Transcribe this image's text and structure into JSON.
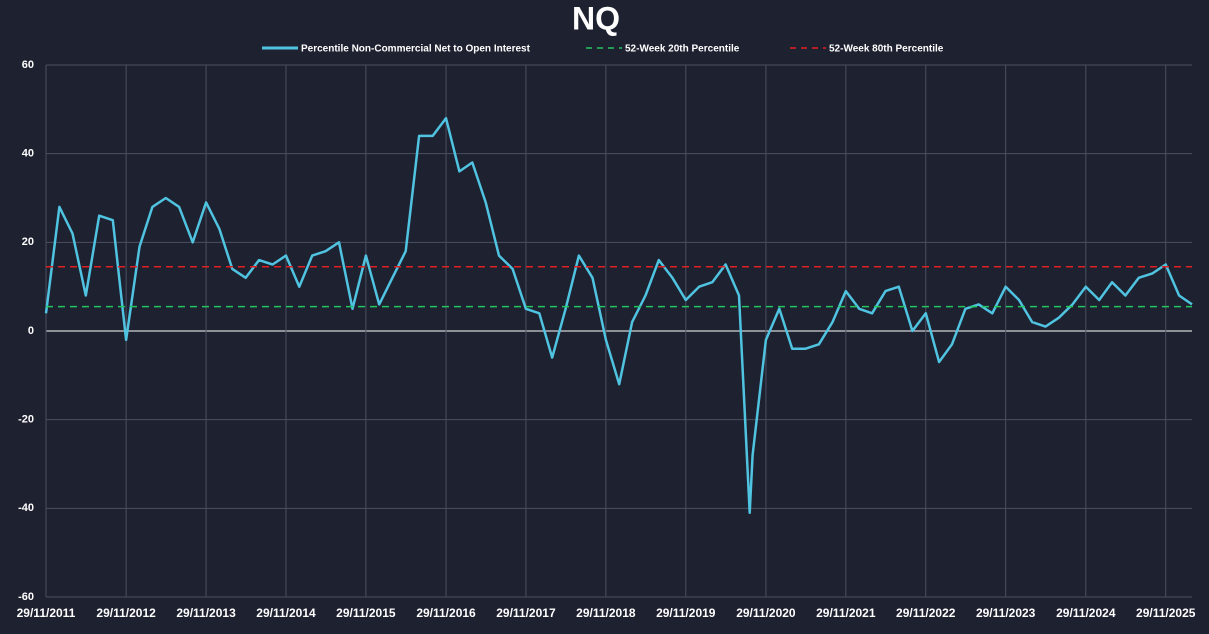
{
  "chart_data": {
    "type": "line",
    "title": "NQ",
    "x": [
      "29/11/2011",
      "29/01/2012",
      "29/03/2012",
      "29/05/2012",
      "29/07/2012",
      "29/09/2012",
      "29/11/2012",
      "29/01/2013",
      "29/03/2013",
      "29/05/2013",
      "29/07/2013",
      "29/09/2013",
      "29/11/2013",
      "29/01/2014",
      "29/03/2014",
      "29/05/2014",
      "29/07/2014",
      "29/09/2014",
      "29/11/2014",
      "29/01/2015",
      "29/03/2015",
      "29/05/2015",
      "29/07/2015",
      "29/09/2015",
      "29/11/2015",
      "29/01/2016",
      "29/03/2016",
      "29/05/2016",
      "29/07/2016",
      "29/09/2016",
      "29/11/2016",
      "29/01/2017",
      "29/03/2017",
      "29/05/2017",
      "29/07/2017",
      "29/09/2017",
      "29/11/2017",
      "29/01/2018",
      "29/03/2018",
      "29/05/2018",
      "29/07/2018",
      "29/09/2018",
      "29/11/2018",
      "29/01/2019",
      "29/03/2019",
      "29/05/2019",
      "29/07/2019",
      "29/09/2019",
      "29/11/2019",
      "29/01/2020",
      "29/03/2020",
      "29/05/2020",
      "29/07/2020",
      "16/09/2020",
      "29/09/2020",
      "29/11/2020",
      "29/01/2021",
      "29/03/2021",
      "29/05/2021",
      "29/07/2021",
      "29/09/2021",
      "29/11/2021",
      "29/01/2022",
      "29/03/2022",
      "29/05/2022",
      "29/07/2022",
      "29/09/2022",
      "29/11/2022",
      "29/01/2023",
      "29/03/2023",
      "29/05/2023",
      "29/07/2023",
      "29/09/2023",
      "29/11/2023",
      "29/01/2024",
      "29/03/2024",
      "29/05/2024",
      "29/07/2024",
      "29/09/2024",
      "29/11/2024",
      "29/01/2025",
      "29/03/2025",
      "29/05/2025",
      "29/07/2025",
      "29/09/2025",
      "29/11/2025",
      "29/01/2026",
      "29/03/2026"
    ],
    "series": [
      {
        "name": "Percentile Non-Commercial Net to Open Interest",
        "color": "#4fc3e0",
        "values": [
          4,
          28,
          22,
          8,
          26,
          25,
          -2,
          19,
          28,
          30,
          28,
          20,
          29,
          23,
          14,
          12,
          16,
          15,
          17,
          10,
          17,
          18,
          20,
          5,
          17,
          6,
          12,
          18,
          44,
          44,
          48,
          36,
          38,
          29,
          17,
          14,
          5,
          4,
          -6,
          5,
          17,
          12,
          -2,
          -12,
          2,
          8,
          16,
          12,
          7,
          10,
          11,
          15,
          8,
          -41,
          -28,
          -2,
          5,
          -4,
          -4,
          -3,
          2,
          9,
          5,
          4,
          9,
          10,
          0,
          4,
          -7,
          -3,
          5,
          6,
          4,
          10,
          7,
          2,
          1,
          3,
          6,
          10,
          7,
          11,
          8,
          12,
          13,
          15,
          8,
          6
        ]
      },
      {
        "name": "52-Week 20th Percentile",
        "color": "#22c55e",
        "value": 5.5
      },
      {
        "name": "52-Week 80th Percentile",
        "color": "#e02020",
        "value": 14.5
      }
    ],
    "xlim": [
      "29/11/2011",
      "29/03/2026"
    ],
    "xticks": [
      "29/11/2011",
      "29/11/2012",
      "29/11/2013",
      "29/11/2014",
      "29/11/2015",
      "29/11/2016",
      "29/11/2017",
      "29/11/2018",
      "29/11/2019",
      "29/11/2020",
      "29/11/2021",
      "29/11/2022",
      "29/11/2023",
      "29/11/2024",
      "29/11/2025"
    ],
    "ylim": [
      -60,
      60
    ],
    "yticks": [
      60,
      40,
      20,
      0,
      -20,
      -40,
      -60
    ],
    "grid": true
  }
}
